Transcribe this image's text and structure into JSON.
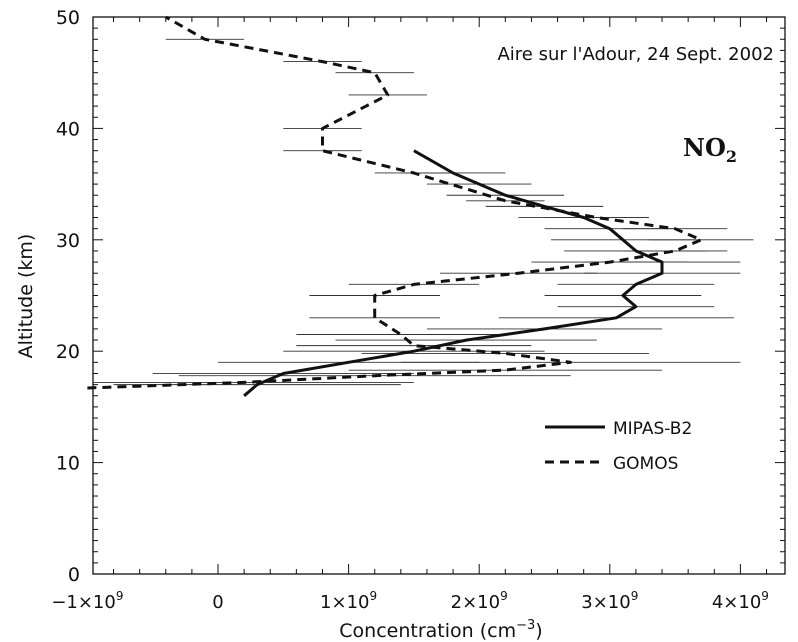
{
  "chart_data": {
    "type": "line",
    "title": "Aire sur l'Adour, 24 Sept. 2002",
    "species_label": "NO",
    "species_subscript": "2",
    "xlabel": "Concentration (cm",
    "xlabel_sup": "−3",
    "xlabel_end": ")",
    "ylabel": "Altitude (km)",
    "xlim": [
      -1000000000.0,
      4400000000.0
    ],
    "ylim": [
      0,
      50
    ],
    "x_ticks": [
      {
        "value": -1000000000.0,
        "mant": "−1×10",
        "exp": "9"
      },
      {
        "value": 0,
        "mant": "0",
        "exp": ""
      },
      {
        "value": 1000000000.0,
        "mant": "1×10",
        "exp": "9"
      },
      {
        "value": 2000000000.0,
        "mant": "2×10",
        "exp": "9"
      },
      {
        "value": 3000000000.0,
        "mant": "3×10",
        "exp": "9"
      },
      {
        "value": 4000000000.0,
        "mant": "4×10",
        "exp": "9"
      }
    ],
    "y_ticks": [
      0,
      10,
      20,
      30,
      40,
      50
    ],
    "grid": false,
    "legend_position": "lower-right",
    "series": [
      {
        "name": "MIPAS-B2",
        "line_style": "solid",
        "color": "#111111",
        "points": [
          {
            "x": 200000000.0,
            "y": 16.0,
            "err": 0.0
          },
          {
            "x": 300000000.0,
            "y": 17.0,
            "err": 1100000000.0
          },
          {
            "x": 500000000.0,
            "y": 18.0,
            "err": 1000000000.0
          },
          {
            "x": 1000000000.0,
            "y": 19.0,
            "err": 1000000000.0
          },
          {
            "x": 1500000000.0,
            "y": 20.0,
            "err": 1000000000.0
          },
          {
            "x": 1900000000.0,
            "y": 21.0,
            "err": 1000000000.0
          },
          {
            "x": 2500000000.0,
            "y": 22.0,
            "err": 900000000.0
          },
          {
            "x": 3050000000.0,
            "y": 23.0,
            "err": 900000000.0
          },
          {
            "x": 3200000000.0,
            "y": 24.0,
            "err": 600000000.0
          },
          {
            "x": 3100000000.0,
            "y": 25.0,
            "err": 600000000.0
          },
          {
            "x": 3200000000.0,
            "y": 26.0,
            "err": 600000000.0
          },
          {
            "x": 3400000000.0,
            "y": 27.0,
            "err": 600000000.0
          },
          {
            "x": 3400000000.0,
            "y": 28.0,
            "err": 600000000.0
          },
          {
            "x": 3200000000.0,
            "y": 29.0,
            "err": 550000000.0
          },
          {
            "x": 3100000000.0,
            "y": 30.0,
            "err": 550000000.0
          },
          {
            "x": 3000000000.0,
            "y": 31.0,
            "err": 500000000.0
          },
          {
            "x": 2800000000.0,
            "y": 32.0,
            "err": 500000000.0
          },
          {
            "x": 2500000000.0,
            "y": 33.0,
            "err": 450000000.0
          },
          {
            "x": 2200000000.0,
            "y": 34.0,
            "err": 450000000.0
          },
          {
            "x": 2000000000.0,
            "y": 35.0,
            "err": 400000000.0
          },
          {
            "x": 1800000000.0,
            "y": 36.0,
            "err": 400000000.0
          },
          {
            "x": 1500000000.0,
            "y": 38.0,
            "err": 0.0
          }
        ]
      },
      {
        "name": "GOMOS",
        "line_style": "dashed",
        "color": "#111111",
        "points": [
          {
            "x": -1000000000.0,
            "y": 16.7,
            "err": 0.0
          },
          {
            "x": 200000000.0,
            "y": 17.2,
            "err": 1300000000.0
          },
          {
            "x": 1200000000.0,
            "y": 17.8,
            "err": 1500000000.0
          },
          {
            "x": 2200000000.0,
            "y": 18.3,
            "err": 1200000000.0
          },
          {
            "x": 2700000000.0,
            "y": 19.0,
            "err": 1300000000.0
          },
          {
            "x": 2200000000.0,
            "y": 19.8,
            "err": 1100000000.0
          },
          {
            "x": 1500000000.0,
            "y": 20.5,
            "err": 900000000.0
          },
          {
            "x": 1400000000.0,
            "y": 21.5,
            "err": 800000000.0
          },
          {
            "x": 1200000000.0,
            "y": 23.0,
            "err": 500000000.0
          },
          {
            "x": 1200000000.0,
            "y": 25.0,
            "err": 500000000.0
          },
          {
            "x": 1500000000.0,
            "y": 26.0,
            "err": 500000000.0
          },
          {
            "x": 2300000000.0,
            "y": 27.0,
            "err": 600000000.0
          },
          {
            "x": 3000000000.0,
            "y": 28.0,
            "err": 600000000.0
          },
          {
            "x": 3500000000.0,
            "y": 29.0,
            "err": 400000000.0
          },
          {
            "x": 3700000000.0,
            "y": 30.0,
            "err": 400000000.0
          },
          {
            "x": 3500000000.0,
            "y": 31.0,
            "err": 400000000.0
          },
          {
            "x": 2900000000.0,
            "y": 32.0,
            "err": 400000000.0
          },
          {
            "x": 2200000000.0,
            "y": 33.5,
            "err": 300000000.0
          },
          {
            "x": 1500000000.0,
            "y": 36.0,
            "err": 300000000.0
          },
          {
            "x": 800000000.0,
            "y": 38.0,
            "err": 300000000.0
          },
          {
            "x": 800000000.0,
            "y": 40.0,
            "err": 300000000.0
          },
          {
            "x": 1300000000.0,
            "y": 43.0,
            "err": 300000000.0
          },
          {
            "x": 1200000000.0,
            "y": 45.0,
            "err": 300000000.0
          },
          {
            "x": 800000000.0,
            "y": 46.0,
            "err": 300000000.0
          },
          {
            "x": -100000000.0,
            "y": 48.0,
            "err": 300000000.0
          },
          {
            "x": -400000000.0,
            "y": 50.0,
            "err": 0.0
          }
        ]
      }
    ]
  }
}
